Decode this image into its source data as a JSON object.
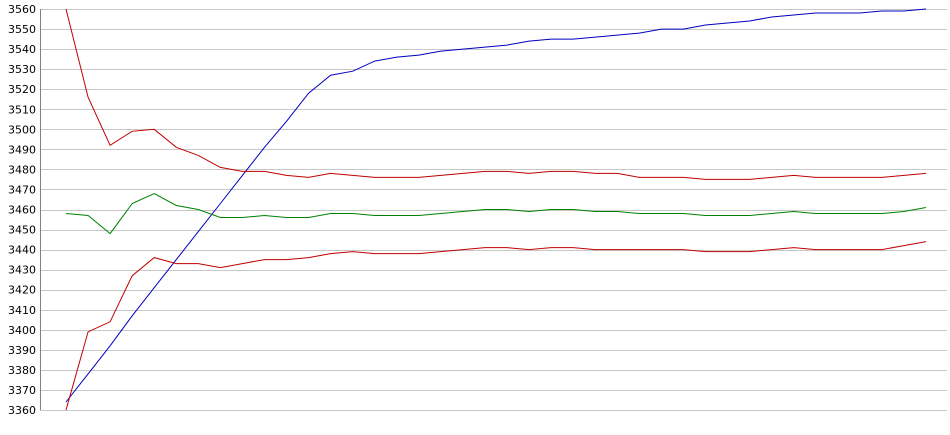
{
  "chart_data": {
    "type": "line",
    "ylim": [
      3360,
      3560
    ],
    "yticks": [
      3560,
      3550,
      3540,
      3530,
      3520,
      3510,
      3500,
      3490,
      3480,
      3470,
      3460,
      3450,
      3440,
      3430,
      3420,
      3410,
      3400,
      3390,
      3380,
      3370,
      3360
    ],
    "grid": true,
    "x": [
      0,
      1,
      2,
      3,
      4,
      5,
      6,
      7,
      8,
      9,
      10,
      11,
      12,
      13,
      14,
      15,
      16,
      17,
      18,
      19,
      20,
      21,
      22,
      23,
      24,
      25,
      26,
      27,
      28,
      29,
      30,
      31,
      32,
      33,
      34,
      35,
      36,
      37,
      38,
      39
    ],
    "series": [
      {
        "color": "#0000c0",
        "values": [
          3364,
          3378,
          3392,
          3407,
          3421,
          3435,
          3449,
          3463,
          3477,
          3491,
          3504,
          3518,
          3527,
          3529,
          3534,
          3536,
          3537,
          3539,
          3540,
          3541,
          3542,
          3544,
          3545,
          3545,
          3546,
          3547,
          3548,
          3550,
          3550,
          3552,
          3553,
          3554,
          3556,
          3557,
          3558,
          3558,
          3558,
          3559,
          3559,
          3560
        ]
      },
      {
        "color": "#c00000",
        "values": [
          3560,
          3516,
          3492,
          3499,
          3500,
          3491,
          3487,
          3481,
          3479,
          3479,
          3477,
          3476,
          3478,
          3477,
          3476,
          3476,
          3476,
          3477,
          3478,
          3479,
          3479,
          3478,
          3479,
          3479,
          3478,
          3478,
          3476,
          3476,
          3476,
          3475,
          3475,
          3475,
          3476,
          3477,
          3476,
          3476,
          3476,
          3476,
          3477,
          3478
        ]
      },
      {
        "color": "#008000",
        "values": [
          3458,
          3457,
          3448,
          3463,
          3468,
          3462,
          3460,
          3456,
          3456,
          3457,
          3456,
          3456,
          3458,
          3458,
          3457,
          3457,
          3457,
          3458,
          3459,
          3460,
          3460,
          3459,
          3460,
          3460,
          3459,
          3459,
          3458,
          3458,
          3458,
          3457,
          3457,
          3457,
          3458,
          3459,
          3458,
          3458,
          3458,
          3458,
          3459,
          3461
        ]
      },
      {
        "color": "#c00000",
        "values": [
          3360,
          3399,
          3404,
          3427,
          3436,
          3433,
          3433,
          3431,
          3433,
          3435,
          3435,
          3436,
          3438,
          3439,
          3438,
          3438,
          3438,
          3439,
          3440,
          3441,
          3441,
          3440,
          3441,
          3441,
          3440,
          3440,
          3440,
          3440,
          3440,
          3439,
          3439,
          3439,
          3440,
          3441,
          3440,
          3440,
          3440,
          3440,
          3442,
          3444
        ]
      }
    ]
  }
}
